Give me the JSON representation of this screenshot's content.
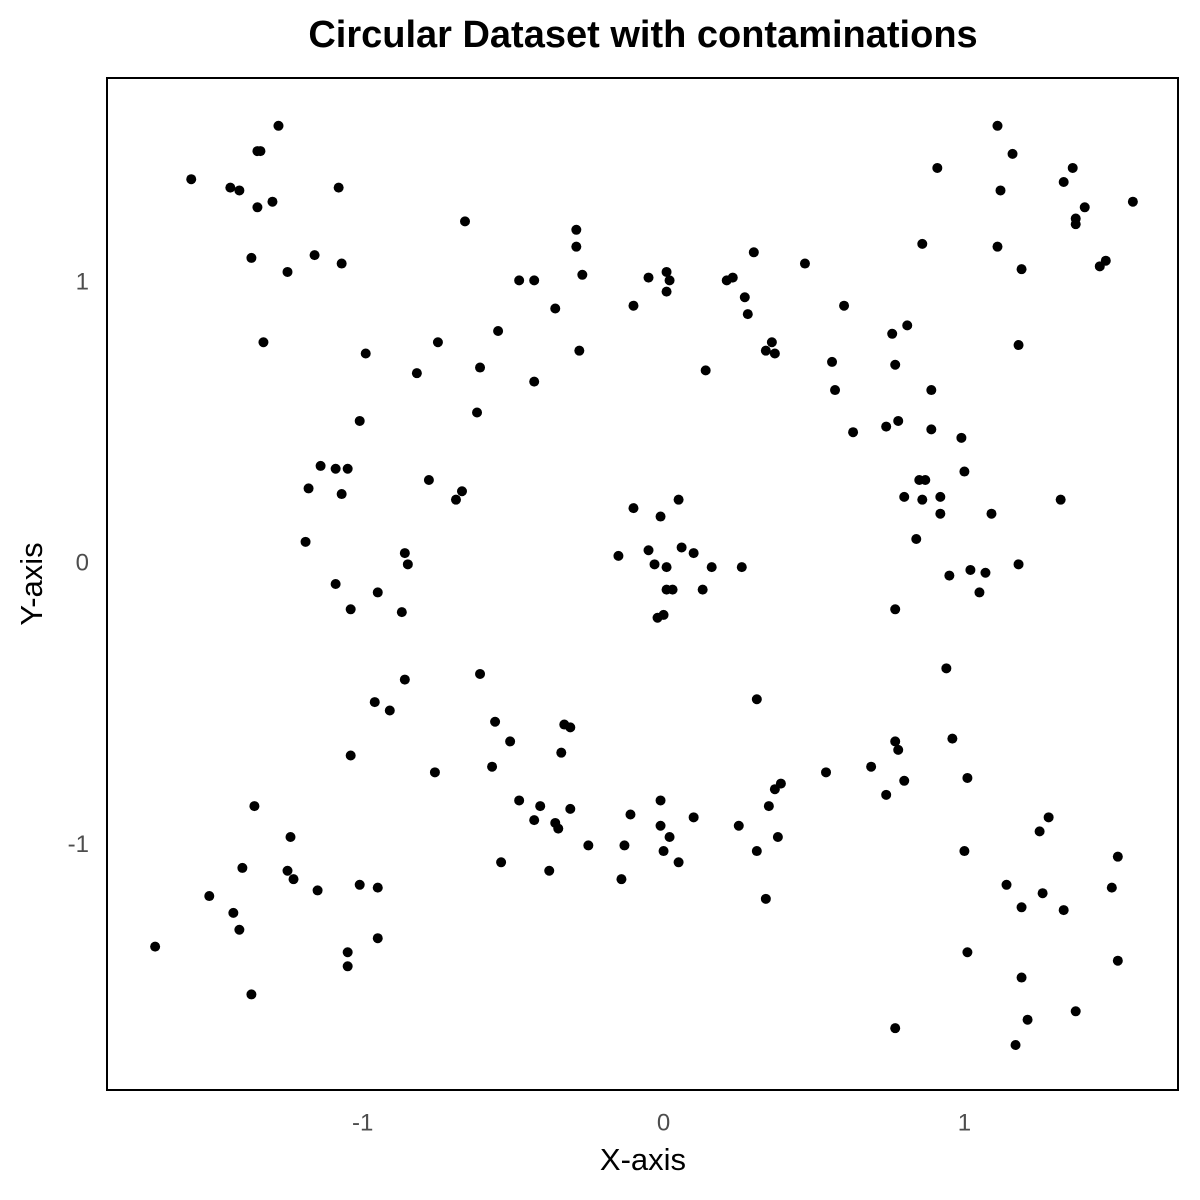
{
  "chart_data": {
    "type": "scatter",
    "title": "Circular Dataset with contaminations",
    "x_label": "X-axis",
    "y_label": "Y-axis",
    "color": "#000000",
    "xlim": [
      -1.85,
      1.71
    ],
    "ylim": [
      -1.87,
      1.73
    ],
    "xticks": [
      -1,
      0,
      1
    ],
    "yticks": [
      -1,
      0,
      1
    ],
    "grid": false,
    "x": [
      -1.57,
      -1.44,
      -1.41,
      -1.35,
      -1.34,
      -1.35,
      -1.3,
      -1.28,
      -1.08,
      -1.37,
      -1.25,
      -1.16,
      -1.07,
      -1.33,
      1.11,
      1.16,
      0.91,
      1.12,
      1.33,
      1.36,
      1.4,
      1.37,
      1.37,
      1.56,
      0.86,
      1.11,
      1.19,
      1.47,
      1.45,
      1.18,
      -0.66,
      -0.29,
      -0.29,
      -0.27,
      -0.48,
      -0.43,
      -0.36,
      -0.28,
      -0.05,
      0.01,
      0.02,
      0.01,
      -0.1,
      0.21,
      0.23,
      0.3,
      0.47,
      0.27,
      0.28,
      0.36,
      0.34,
      0.37,
      0.14,
      -0.55,
      -0.75,
      -0.99,
      -0.82,
      -0.61,
      -0.43,
      -0.62,
      -1.01,
      0.6,
      0.76,
      0.81,
      0.56,
      0.77,
      0.57,
      0.89,
      0.63,
      0.74,
      0.78,
      0.89,
      0.99,
      1.0,
      0.85,
      0.87,
      0.8,
      0.86,
      0.92,
      0.92,
      1.09,
      1.32,
      0.84,
      0.95,
      1.02,
      1.07,
      1.05,
      1.18,
      0.77,
      -1.14,
      -1.09,
      -1.05,
      -1.18,
      -1.07,
      -1.19,
      -0.78,
      -0.67,
      -0.69,
      -0.86,
      -0.85,
      -1.09,
      -1.04,
      -0.95,
      -0.87,
      -0.1,
      0.05,
      -0.01,
      -0.15,
      -0.05,
      -0.03,
      0.01,
      0.06,
      0.1,
      0.16,
      0.26,
      0.01,
      0.03,
      0.13,
      -0.02,
      0.0,
      -0.61,
      0.94,
      0.31,
      -0.96,
      -0.91,
      -0.86,
      -0.56,
      -0.33,
      -0.31,
      -0.51,
      -1.04,
      -0.57,
      -0.34,
      -0.76,
      0.54,
      0.69,
      0.77,
      0.78,
      0.96,
      0.74,
      0.8,
      1.01,
      0.39,
      0.37,
      0.35,
      -0.48,
      -0.41,
      -0.43,
      -0.36,
      -0.35,
      -0.31,
      -0.11,
      -0.01,
      -0.01,
      0.02,
      0.1,
      0.25,
      0.38,
      -0.25,
      -0.13,
      0.0,
      0.31,
      -0.54,
      -0.38,
      -0.14,
      0.05,
      0.34,
      1.0,
      -1.36,
      -1.24,
      -1.4,
      -1.25,
      -1.23,
      -1.15,
      -1.01,
      -0.95,
      -1.51,
      -1.43,
      -1.41,
      -1.69,
      -0.95,
      -1.05,
      -1.05,
      -1.37,
      1.25,
      1.28,
      1.51,
      1.14,
      1.26,
      1.49,
      1.19,
      1.33,
      1.01,
      1.51,
      1.19,
      1.37,
      1.21,
      0.77,
      1.17
    ],
    "y": [
      1.37,
      1.34,
      1.33,
      1.47,
      1.47,
      1.27,
      1.29,
      1.56,
      1.34,
      1.09,
      1.04,
      1.1,
      1.07,
      0.79,
      1.56,
      1.46,
      1.41,
      1.33,
      1.36,
      1.41,
      1.27,
      1.23,
      1.21,
      1.29,
      1.14,
      1.13,
      1.05,
      1.08,
      1.06,
      0.78,
      1.22,
      1.19,
      1.13,
      1.03,
      1.01,
      1.01,
      0.91,
      0.76,
      1.02,
      1.04,
      1.01,
      0.97,
      0.92,
      1.01,
      1.02,
      1.11,
      1.07,
      0.95,
      0.89,
      0.79,
      0.76,
      0.75,
      0.69,
      0.83,
      0.79,
      0.75,
      0.68,
      0.7,
      0.65,
      0.54,
      0.51,
      0.92,
      0.82,
      0.85,
      0.72,
      0.71,
      0.62,
      0.62,
      0.47,
      0.49,
      0.51,
      0.48,
      0.45,
      0.33,
      0.3,
      0.3,
      0.24,
      0.23,
      0.24,
      0.18,
      0.18,
      0.23,
      0.09,
      -0.04,
      -0.02,
      -0.03,
      -0.1,
      0.0,
      -0.16,
      0.35,
      0.34,
      0.34,
      0.27,
      0.25,
      0.08,
      0.3,
      0.26,
      0.23,
      0.04,
      0.0,
      -0.07,
      -0.16,
      -0.1,
      -0.17,
      0.2,
      0.23,
      0.17,
      0.03,
      0.05,
      0.0,
      -0.01,
      0.06,
      0.04,
      -0.01,
      -0.01,
      -0.09,
      -0.09,
      -0.09,
      -0.19,
      -0.18,
      -0.39,
      -0.37,
      -0.48,
      -0.49,
      -0.52,
      -0.41,
      -0.56,
      -0.57,
      -0.58,
      -0.63,
      -0.68,
      -0.72,
      -0.67,
      -0.74,
      -0.74,
      -0.72,
      -0.63,
      -0.66,
      -0.62,
      -0.82,
      -0.77,
      -0.76,
      -0.78,
      -0.8,
      -0.86,
      -0.84,
      -0.86,
      -0.91,
      -0.92,
      -0.94,
      -0.87,
      -0.89,
      -0.84,
      -0.93,
      -0.97,
      -0.9,
      -0.93,
      -0.97,
      -1.0,
      -1.0,
      -1.02,
      -1.02,
      -1.06,
      -1.09,
      -1.12,
      -1.06,
      -1.19,
      -1.02,
      -0.86,
      -0.97,
      -1.08,
      -1.09,
      -1.12,
      -1.16,
      -1.14,
      -1.15,
      -1.18,
      -1.24,
      -1.3,
      -1.36,
      -1.33,
      -1.38,
      -1.43,
      -1.53,
      -0.95,
      -0.9,
      -1.04,
      -1.14,
      -1.17,
      -1.15,
      -1.22,
      -1.23,
      -1.38,
      -1.41,
      -1.47,
      -1.59,
      -1.62,
      -1.65,
      -1.71
    ]
  }
}
